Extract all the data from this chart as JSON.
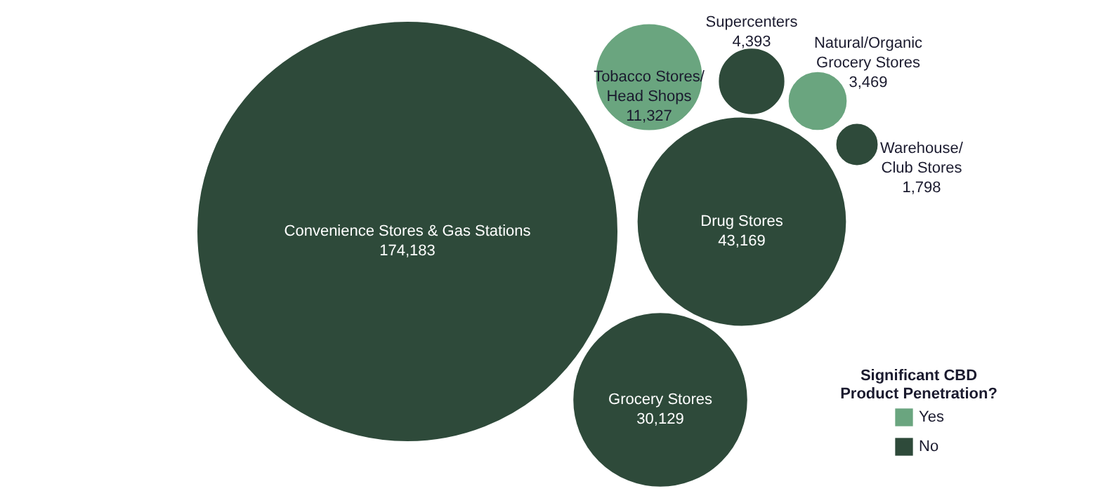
{
  "chart_data": {
    "type": "other",
    "categories": [
      "Convenience Stores & Gas Stations",
      "Drug Stores",
      "Grocery Stores",
      "Tobacco Stores/\nHead Shops",
      "Supercenters",
      "Natural/Organic\nGrocery Stores",
      "Warehouse/\nClub Stores"
    ],
    "series": [
      {
        "name": "Yes",
        "color": "#6aa57f",
        "values": [
          null,
          null,
          null,
          11327,
          null,
          3469,
          null
        ],
        "value_labels": [
          null,
          null,
          null,
          "11,327",
          null,
          "3,469",
          null
        ]
      },
      {
        "name": "No",
        "color": "#2e4a3a",
        "values": [
          174183,
          43169,
          30129,
          null,
          4393,
          null,
          1798
        ],
        "value_labels": [
          "174,183",
          "43,169",
          "30,129",
          null,
          "4,393",
          null,
          "1,798"
        ]
      }
    ],
    "legend": "bottom right",
    "legend_title": "Significant CBD\nProduct Penetration?"
  }
}
